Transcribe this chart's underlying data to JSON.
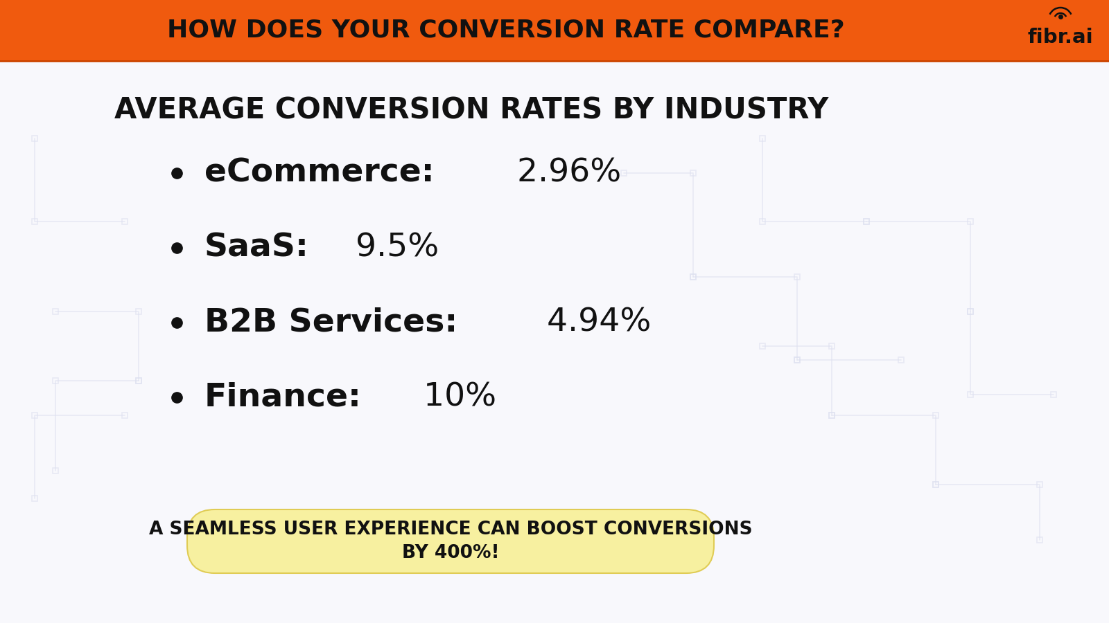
{
  "header_text": "HOW DOES YOUR CONVERSION RATE COMPARE?",
  "header_bg_color": "#F05A0E",
  "header_text_color": "#111111",
  "body_bg_color": "#f8f8fc",
  "main_title": "AVERAGE CONVERSION RATES BY INDUSTRY",
  "bullet_items": [
    {
      "label": "eCommerce:",
      "value": " 2.96%"
    },
    {
      "label": "SaaS:",
      "value": " 9.5%"
    },
    {
      "label": "B2B Services:",
      "value": " 4.94%"
    },
    {
      "label": "Finance:",
      "value": " 10%"
    }
  ],
  "footer_text_line1": "A SEAMLESS USER EXPERIENCE CAN BOOST CONVERSIONS",
  "footer_text_line2": "BY 400%!",
  "footer_bg_color": "#f7f0a0",
  "footer_border_color": "#e0cc55",
  "logo_text": "fibr.ai",
  "logo_color": "#111111",
  "title_fontsize": 30,
  "bullet_fontsize": 34,
  "footer_fontsize": 19,
  "header_fontsize": 26,
  "watermark_color": "#dde0f0"
}
